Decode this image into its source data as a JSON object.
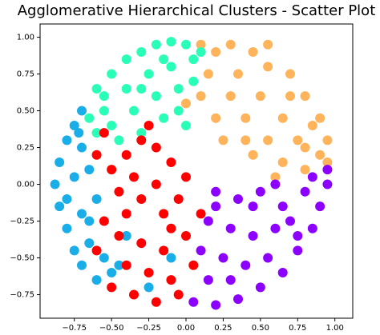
{
  "chart_data": {
    "type": "scatter",
    "title": "Agglomerative Hierarchical Clusters - Scatter Plot",
    "xlim": [
      -0.98,
      1.12
    ],
    "ylim": [
      -0.91,
      1.09
    ],
    "xticks": [
      {
        "value": -0.75,
        "label": "−0.75"
      },
      {
        "value": -0.5,
        "label": "−0.50"
      },
      {
        "value": -0.25,
        "label": "−0.25"
      },
      {
        "value": 0,
        "label": "0.00"
      },
      {
        "value": 0.25,
        "label": "0.25"
      },
      {
        "value": 0.5,
        "label": "0.50"
      },
      {
        "value": 0.75,
        "label": "0.75"
      },
      {
        "value": 1,
        "label": "1.00"
      }
    ],
    "yticks": [
      {
        "value": -0.75,
        "label": "−0.75"
      },
      {
        "value": -0.5,
        "label": "−0.50"
      },
      {
        "value": -0.25,
        "label": "−0.25"
      },
      {
        "value": 0,
        "label": "0.00"
      },
      {
        "value": 0.25,
        "label": "0.25"
      },
      {
        "value": 0.5,
        "label": "0.50"
      },
      {
        "value": 0.75,
        "label": "0.75"
      },
      {
        "value": 1,
        "label": "1.00"
      }
    ],
    "grid": false,
    "series": [
      {
        "color": "#ffb35a",
        "x": [
          0.1,
          0.2,
          0.3,
          0.45,
          0.55,
          0.7,
          0.8,
          0.9,
          0.95,
          0.9,
          0.8,
          0.65,
          0.55,
          0.4,
          0.3,
          0.2,
          0.1,
          0.0,
          0.35,
          0.5,
          0.65,
          0.75,
          0.6,
          0.45,
          0.25,
          0.85,
          0.7,
          0.55,
          0.95,
          0.15,
          0.4,
          0.8
        ],
        "values": [
          0.95,
          0.9,
          0.95,
          0.9,
          0.8,
          0.75,
          0.6,
          0.45,
          0.3,
          0.2,
          0.1,
          0.15,
          0.3,
          0.45,
          0.6,
          0.45,
          0.6,
          0.55,
          0.75,
          0.6,
          0.45,
          0.3,
          0.05,
          0.2,
          0.3,
          0.4,
          0.6,
          0.95,
          0.15,
          0.75,
          0.3,
          0.25
        ]
      },
      {
        "color": "#2affb8",
        "x": [
          -0.6,
          -0.5,
          -0.4,
          -0.3,
          -0.2,
          -0.1,
          0.0,
          0.05,
          -0.1,
          -0.25,
          -0.4,
          -0.55,
          -0.65,
          -0.5,
          -0.35,
          -0.2,
          -0.05,
          0.05,
          -0.15,
          -0.3,
          -0.45,
          0.0,
          -0.55,
          -0.3,
          -0.15,
          0.1,
          -0.05,
          -0.6
        ],
        "values": [
          0.65,
          0.75,
          0.85,
          0.9,
          0.95,
          0.97,
          0.95,
          0.85,
          0.8,
          0.75,
          0.65,
          0.5,
          0.45,
          0.4,
          0.5,
          0.6,
          0.65,
          0.7,
          0.45,
          0.35,
          0.3,
          0.4,
          0.6,
          0.65,
          0.85,
          0.9,
          0.5,
          0.35
        ]
      },
      {
        "color": "#1aaee8",
        "x": [
          -0.7,
          -0.75,
          -0.8,
          -0.85,
          -0.88,
          -0.85,
          -0.8,
          -0.75,
          -0.7,
          -0.65,
          -0.7,
          -0.75,
          -0.7,
          -0.65,
          -0.6,
          -0.65,
          -0.55,
          -0.5,
          -0.4,
          -0.8,
          -0.72,
          -0.6,
          -0.45,
          -0.25,
          -0.1
        ],
        "values": [
          0.5,
          0.4,
          0.3,
          0.15,
          0.0,
          -0.15,
          -0.3,
          -0.45,
          -0.55,
          -0.4,
          -0.2,
          0.05,
          0.25,
          0.1,
          -0.1,
          -0.25,
          -0.5,
          -0.6,
          -0.35,
          -0.1,
          0.35,
          -0.65,
          -0.55,
          -0.7,
          -0.5
        ]
      },
      {
        "color": "#ff0000",
        "x": [
          -0.6,
          -0.5,
          -0.4,
          -0.3,
          -0.2,
          -0.1,
          0.0,
          -0.05,
          -0.15,
          -0.3,
          -0.45,
          -0.55,
          -0.45,
          -0.3,
          -0.15,
          0.0,
          0.05,
          -0.1,
          -0.25,
          -0.4,
          -0.5,
          -0.35,
          -0.2,
          -0.05,
          -0.2,
          -0.35,
          -0.55,
          -0.6,
          0.1,
          -0.25,
          -0.1,
          -0.4
        ],
        "values": [
          0.2,
          0.1,
          0.2,
          0.3,
          0.25,
          0.15,
          0.05,
          -0.1,
          -0.2,
          -0.1,
          -0.05,
          -0.25,
          -0.35,
          -0.4,
          -0.45,
          -0.35,
          -0.55,
          -0.65,
          -0.6,
          -0.55,
          -0.7,
          -0.75,
          -0.8,
          -0.75,
          0.0,
          0.05,
          0.35,
          -0.45,
          -0.2,
          0.4,
          -0.3,
          -0.2
        ]
      },
      {
        "color": "#8b00ff",
        "x": [
          0.05,
          0.2,
          0.35,
          0.5,
          0.65,
          0.75,
          0.85,
          0.9,
          0.95,
          0.8,
          0.65,
          0.5,
          0.35,
          0.2,
          0.15,
          0.3,
          0.45,
          0.6,
          0.7,
          0.55,
          0.4,
          0.25,
          0.1,
          0.15,
          0.3,
          0.45,
          0.6,
          0.85,
          0.75,
          0.2,
          0.95
        ],
        "values": [
          -0.8,
          -0.82,
          -0.78,
          -0.7,
          -0.6,
          -0.45,
          -0.3,
          -0.15,
          0.0,
          -0.05,
          -0.15,
          -0.05,
          -0.1,
          -0.05,
          -0.25,
          -0.3,
          -0.35,
          -0.3,
          -0.25,
          -0.5,
          -0.55,
          -0.5,
          -0.45,
          -0.65,
          -0.65,
          -0.15,
          0.0,
          0.05,
          -0.35,
          -0.15,
          0.1
        ]
      }
    ]
  }
}
